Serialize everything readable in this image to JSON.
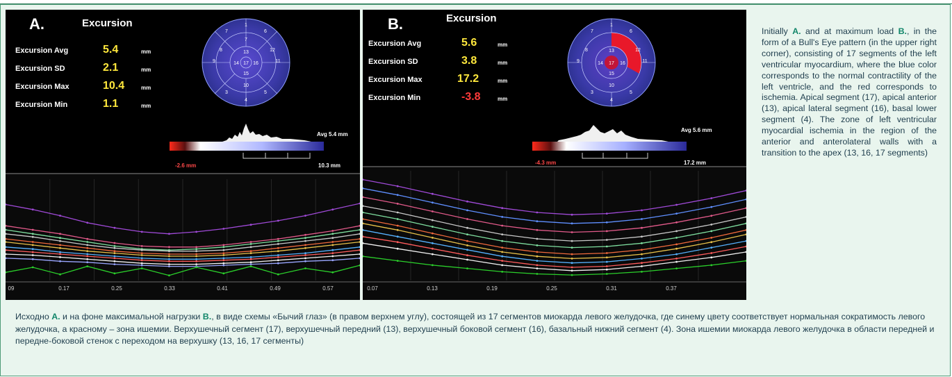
{
  "panels": [
    {
      "label": "A.",
      "title": "Excursion",
      "metrics": [
        {
          "name": "Excursion Avg",
          "value": "5.4",
          "unit": "mm"
        },
        {
          "name": "Excursion SD",
          "value": "2.1",
          "unit": "mm"
        },
        {
          "name": "Excursion Max",
          "value": "10.4",
          "unit": "mm"
        },
        {
          "name": "Excursion Min",
          "value": "1.1",
          "unit": "mm"
        }
      ],
      "bullseye_segments": [
        "1",
        "2",
        "3",
        "4",
        "5",
        "6",
        "7",
        "8",
        "9",
        "10",
        "11",
        "12",
        "13",
        "14",
        "15",
        "16",
        "17"
      ],
      "colorbar": {
        "min_label": "-2.6 mm",
        "max_label": "10.3 mm",
        "avg_label": "Avg 5.4 mm"
      },
      "x_ticks": [
        "09",
        "0.17",
        "0.25",
        "0.33",
        "0.41",
        "0.49",
        "0.57"
      ]
    },
    {
      "label": "B.",
      "title": "Excursion",
      "metrics": [
        {
          "name": "Excursion Avg",
          "value": "5.6",
          "unit": "mm"
        },
        {
          "name": "Excursion SD",
          "value": "3.8",
          "unit": "mm"
        },
        {
          "name": "Excursion Max",
          "value": "17.2",
          "unit": "mm"
        },
        {
          "name": "Excursion Min",
          "value": "-3.8",
          "unit": "mm"
        }
      ],
      "bullseye_segments": [
        "1",
        "2",
        "3",
        "4",
        "5",
        "6",
        "7",
        "8",
        "9",
        "10",
        "11",
        "12",
        "13",
        "14",
        "15",
        "16",
        "17"
      ],
      "colorbar": {
        "min_label": "-4.3 mm",
        "max_label": "17.2 mm",
        "avg_label": "Avg 5.6 mm"
      },
      "x_ticks": [
        "0.07",
        "0.13",
        "0.19",
        "0.25",
        "0.31",
        "0.37"
      ]
    }
  ],
  "description_en": {
    "text1": "Initially ",
    "bold1": "A.",
    "text2": " and at maximum load ",
    "bold2": "B.",
    "text3": ", in the form of a Bull's Eye pattern (in the upper right corner), consisting of 17 segments of the left ventricular myocardium, where the blue color corresponds to the normal contractility of the left ventricle, and the red corresponds to ischemia. Apical segment (17), apical anterior (13), apical lateral segment (16), basal lower segment (4). The zone of left ventricular myocardial ischemia in the region of the anterior and anterolateral walls with a transition to the apex (13, 16, 17 segments)"
  },
  "description_ru": {
    "text1": "Исходно ",
    "bold1": "А.",
    "text2": " и на фоне максимальной нагрузки ",
    "bold2": "В.",
    "text3": ", в виде схемы «Бычий глаз» (в правом верхнем углу), состоящей из 17 сегментов миокарда левого желудочка, где синему цвету соответствует нормальная сократимость левого желудочка, а красному – зона ишемии. Верхушечный сегмент (17), верхушечный передний (13), верхушечный боковой сегмент (16), базальный нижний сегмент (4). Зона ишемии миокарда левого желудочка в области передней и передне-боковой стенок с переходом на верхушку (13, 16, 17 сегменты)"
  },
  "chart_data": [
    {
      "type": "line",
      "title": "Excursion",
      "x": [
        0.09,
        0.13,
        0.17,
        0.21,
        0.25,
        0.29,
        0.33,
        0.37,
        0.41,
        0.45,
        0.49,
        0.53,
        0.57,
        0.61
      ],
      "xlim": [
        0.09,
        0.61
      ],
      "ylim": [
        0,
        100
      ],
      "grid": true,
      "series": [
        {
          "color": "#a04ad8",
          "values": [
            75,
            70,
            64,
            57,
            52,
            48,
            46,
            48,
            51,
            55,
            59,
            64,
            70,
            76
          ]
        },
        {
          "color": "#e25a8a",
          "values": [
            54,
            50,
            46,
            41,
            37,
            34,
            33,
            33,
            35,
            38,
            41,
            45,
            49,
            54
          ]
        },
        {
          "color": "#7fe0a0",
          "values": [
            50,
            46,
            42,
            38,
            34,
            31,
            30,
            31,
            33,
            36,
            39,
            42,
            46,
            50
          ]
        },
        {
          "color": "#c9c9c9",
          "values": [
            46,
            43,
            39,
            35,
            32,
            30,
            29,
            29,
            30,
            33,
            36,
            39,
            42,
            46
          ]
        },
        {
          "color": "#f06a3c",
          "values": [
            41,
            38,
            35,
            32,
            29,
            27,
            26,
            26,
            27,
            29,
            32,
            35,
            38,
            41
          ]
        },
        {
          "color": "#e8c14a",
          "values": [
            38,
            35,
            32,
            29,
            27,
            25,
            24,
            24,
            25,
            27,
            29,
            32,
            35,
            38
          ]
        },
        {
          "color": "#56b2ff",
          "values": [
            33,
            31,
            28,
            26,
            24,
            22,
            21,
            21,
            22,
            23,
            25,
            27,
            30,
            33
          ]
        },
        {
          "color": "#ff5c5c",
          "values": [
            30,
            28,
            26,
            24,
            22,
            20,
            19,
            19,
            20,
            21,
            23,
            25,
            27,
            30
          ]
        },
        {
          "color": "#f2f2f2",
          "values": [
            26,
            25,
            23,
            21,
            19,
            17,
            16,
            16,
            17,
            18,
            20,
            22,
            24,
            26
          ]
        },
        {
          "color": "#9aa6ff",
          "values": [
            22,
            21,
            19,
            18,
            16,
            15,
            14,
            14,
            15,
            16,
            17,
            19,
            20,
            22
          ]
        },
        {
          "color": "#2bd02b",
          "values": [
            8,
            13,
            6,
            14,
            7,
            12,
            5,
            13,
            7,
            14,
            6,
            12,
            8,
            15
          ]
        }
      ]
    },
    {
      "type": "line",
      "title": "Excursion",
      "x": [
        0.07,
        0.1,
        0.13,
        0.16,
        0.19,
        0.22,
        0.25,
        0.28,
        0.31,
        0.34,
        0.37,
        0.4
      ],
      "xlim": [
        0.07,
        0.4
      ],
      "ylim": [
        0,
        100
      ],
      "grid": true,
      "series": [
        {
          "color": "#a04ad8",
          "values": [
            92,
            86,
            79,
            72,
            66,
            62,
            60,
            61,
            64,
            69,
            75,
            82
          ]
        },
        {
          "color": "#5f8fff",
          "values": [
            84,
            78,
            71,
            64,
            58,
            54,
            52,
            53,
            56,
            61,
            67,
            74
          ]
        },
        {
          "color": "#e25a8a",
          "values": [
            76,
            70,
            63,
            56,
            50,
            46,
            44,
            45,
            48,
            53,
            59,
            66
          ]
        },
        {
          "color": "#c9c9c9",
          "values": [
            68,
            62,
            55,
            48,
            42,
            38,
            36,
            37,
            40,
            45,
            51,
            58
          ]
        },
        {
          "color": "#7fe0a0",
          "values": [
            62,
            56,
            49,
            42,
            36,
            32,
            30,
            31,
            34,
            39,
            45,
            52
          ]
        },
        {
          "color": "#f06a3c",
          "values": [
            56,
            50,
            43,
            36,
            30,
            26,
            24,
            25,
            28,
            33,
            39,
            46
          ]
        },
        {
          "color": "#e8c14a",
          "values": [
            52,
            46,
            39,
            32,
            26,
            22,
            20,
            21,
            24,
            29,
            35,
            42
          ]
        },
        {
          "color": "#56b2ff",
          "values": [
            46,
            40,
            34,
            28,
            22,
            18,
            16,
            17,
            20,
            24,
            30,
            36
          ]
        },
        {
          "color": "#ff5c5c",
          "values": [
            40,
            35,
            29,
            23,
            18,
            14,
            12,
            13,
            16,
            20,
            25,
            31
          ]
        },
        {
          "color": "#f2f2f2",
          "values": [
            34,
            29,
            24,
            19,
            14,
            11,
            9,
            10,
            13,
            17,
            21,
            26
          ]
        },
        {
          "color": "#2bd02b",
          "values": [
            22,
            18,
            14,
            11,
            8,
            6,
            5,
            6,
            8,
            11,
            14,
            18
          ]
        }
      ]
    }
  ]
}
